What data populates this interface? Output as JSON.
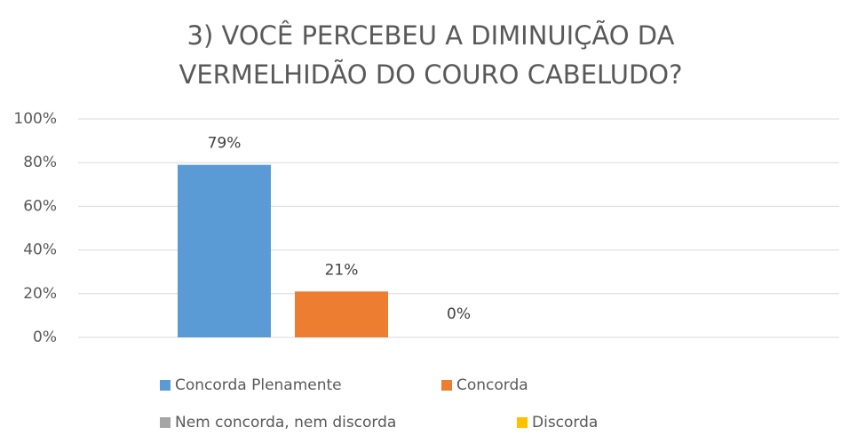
{
  "chart_data": {
    "type": "bar",
    "title": [
      "3) VOCÊ PERCEBEU A  DIMINUIÇÃO DA",
      "VERMELHIDÃO DO COURO CABELUDO?"
    ],
    "categories": [
      null
    ],
    "series": [
      {
        "name": "Concorda Plenamente",
        "color": "#5b9bd5",
        "values": [
          79
        ],
        "value_labels": [
          "79%"
        ]
      },
      {
        "name": "Concorda",
        "color": "#ed7d31",
        "values": [
          21
        ],
        "value_labels": [
          "21%"
        ]
      },
      {
        "name": "Nem concorda, nem discorda",
        "color": "#a5a5a5",
        "values": [
          0
        ],
        "value_labels": [
          "0%"
        ]
      },
      {
        "name": "Discorda",
        "color": "#ffc000",
        "values": [
          null
        ]
      }
    ],
    "ylim": [
      0,
      100
    ],
    "yticks": [
      {
        "value": 0,
        "label": "0%"
      },
      {
        "value": 20,
        "label": "20%"
      },
      {
        "value": 40,
        "label": "40%"
      },
      {
        "value": 60,
        "label": "60%"
      },
      {
        "value": 80,
        "label": "80%"
      },
      {
        "value": 100,
        "label": "100%"
      }
    ],
    "grid": true,
    "legend": "bottom"
  }
}
